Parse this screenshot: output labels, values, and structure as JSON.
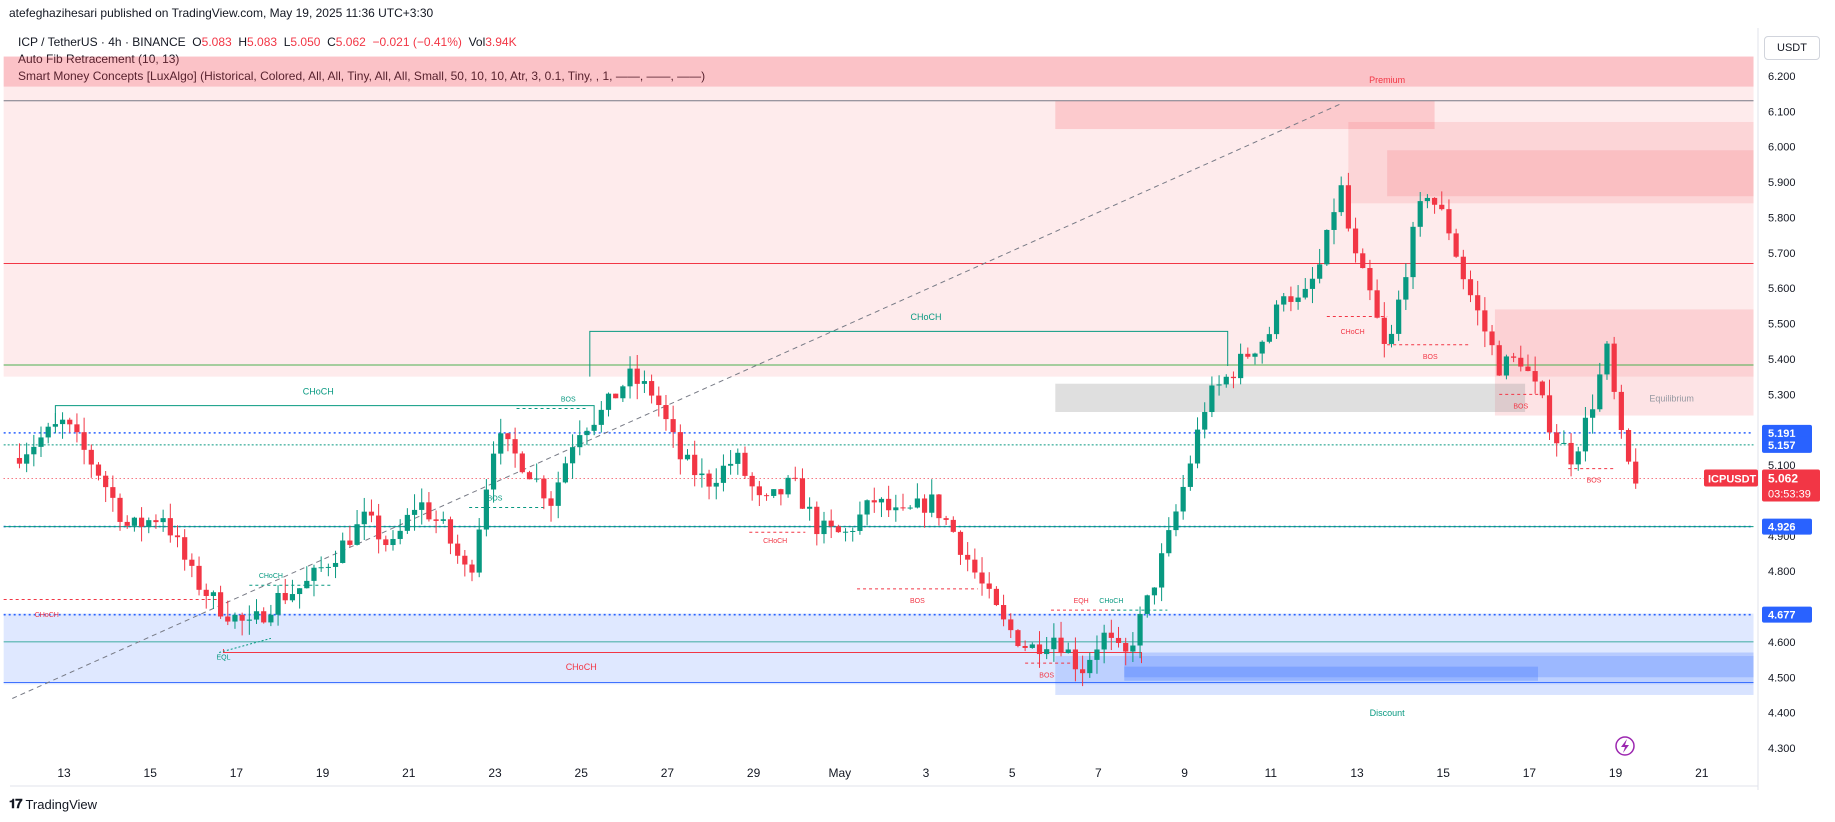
{
  "header": {
    "published": "atefeghazihesari published on TradingView.com, May 19, 2025 11:36 UTC+3:30",
    "symbol_line": {
      "symbol": "ICP / TetherUS · 4h · BINANCE",
      "o_label": "O",
      "o": "5.083",
      "h_label": "H",
      "h": "5.083",
      "l_label": "L",
      "l": "5.050",
      "c_label": "C",
      "c": "5.062",
      "change": "−0.021 (−0.41%)",
      "vol_label": "Vol",
      "vol": "3.94K"
    },
    "indicators": [
      "Auto Fib Retracement (10, 13)",
      "Smart Money Concepts [LuxAlgo] (Historical, Colored, All, All, Tiny, All, All, Small, 50, 10, 10, Atr, 3, 0.1, Tiny, , 1, ——, ——, ——)"
    ]
  },
  "currency_button": "USDT",
  "brand": "TradingView",
  "colors": {
    "up": "#089981",
    "down": "#f23645",
    "blue": "#2962ff"
  },
  "chart_data": {
    "type": "candlestick",
    "ylim": [
      4.25,
      6.35
    ],
    "y_ticks": [
      "6.200",
      "6.100",
      "6.000",
      "5.900",
      "5.800",
      "5.700",
      "5.600",
      "5.500",
      "5.400",
      "5.300",
      "5.100",
      "4.900",
      "4.800",
      "4.600",
      "4.500",
      "4.400",
      "4.300"
    ],
    "y_tick_values": [
      6.2,
      6.1,
      6.0,
      5.9,
      5.8,
      5.7,
      5.6,
      5.5,
      5.4,
      5.3,
      5.1,
      4.9,
      4.8,
      4.6,
      4.5,
      4.4,
      4.3
    ],
    "x_ticks": [
      {
        "label": "13",
        "day": 0
      },
      {
        "label": "15",
        "day": 2
      },
      {
        "label": "17",
        "day": 4
      },
      {
        "label": "19",
        "day": 6
      },
      {
        "label": "21",
        "day": 8
      },
      {
        "label": "23",
        "day": 10
      },
      {
        "label": "25",
        "day": 12
      },
      {
        "label": "27",
        "day": 14
      },
      {
        "label": "29",
        "day": 16
      },
      {
        "label": "May",
        "day": 18
      },
      {
        "label": "3",
        "day": 20
      },
      {
        "label": "5",
        "day": 22
      },
      {
        "label": "7",
        "day": 24
      },
      {
        "label": "9",
        "day": 26
      },
      {
        "label": "11",
        "day": 28
      },
      {
        "label": "13",
        "day": 30
      },
      {
        "label": "15",
        "day": 32
      },
      {
        "label": "17",
        "day": 34
      },
      {
        "label": "19",
        "day": 36
      },
      {
        "label": "21",
        "day": 38
      }
    ],
    "anchors": [
      [
        -1.2,
        5.12
      ],
      [
        0,
        5.22
      ],
      [
        0.8,
        5.08
      ],
      [
        1.5,
        4.92
      ],
      [
        2.3,
        4.96
      ],
      [
        3,
        4.78
      ],
      [
        3.6,
        4.7
      ],
      [
        4.3,
        4.64
      ],
      [
        4.9,
        4.72
      ],
      [
        5.6,
        4.76
      ],
      [
        6.3,
        4.85
      ],
      [
        7.0,
        4.95
      ],
      [
        7.6,
        4.86
      ],
      [
        8.2,
        5.0
      ],
      [
        8.8,
        4.92
      ],
      [
        9.4,
        4.78
      ],
      [
        10.0,
        5.18
      ],
      [
        10.7,
        5.1
      ],
      [
        11.3,
        5.0
      ],
      [
        11.9,
        5.2
      ],
      [
        12.5,
        5.25
      ],
      [
        13.1,
        5.35
      ],
      [
        13.7,
        5.3
      ],
      [
        14.3,
        5.12
      ],
      [
        14.9,
        5.05
      ],
      [
        15.6,
        5.12
      ],
      [
        16.2,
        4.98
      ],
      [
        16.9,
        5.05
      ],
      [
        17.5,
        4.92
      ],
      [
        18.1,
        4.9
      ],
      [
        18.8,
        5.0
      ],
      [
        19.4,
        4.95
      ],
      [
        20.1,
        5.0
      ],
      [
        20.6,
        4.92
      ],
      [
        21.2,
        4.78
      ],
      [
        21.8,
        4.65
      ],
      [
        22.4,
        4.58
      ],
      [
        23.0,
        4.62
      ],
      [
        23.6,
        4.52
      ],
      [
        24.1,
        4.62
      ],
      [
        24.6,
        4.55
      ],
      [
        25.1,
        4.7
      ],
      [
        25.6,
        4.88
      ],
      [
        26.0,
        5.05
      ],
      [
        26.5,
        5.28
      ],
      [
        27.0,
        5.35
      ],
      [
        27.5,
        5.42
      ],
      [
        28.0,
        5.48
      ],
      [
        28.3,
        5.6
      ],
      [
        28.7,
        5.55
      ],
      [
        29.2,
        5.68
      ],
      [
        29.6,
        5.9
      ],
      [
        29.9,
        5.7
      ],
      [
        30.3,
        5.58
      ],
      [
        30.7,
        5.4
      ],
      [
        31.2,
        5.7
      ],
      [
        31.6,
        5.88
      ],
      [
        32.1,
        5.78
      ],
      [
        32.5,
        5.62
      ],
      [
        32.9,
        5.5
      ],
      [
        33.3,
        5.38
      ],
      [
        33.8,
        5.4
      ],
      [
        34.2,
        5.3
      ],
      [
        34.6,
        5.18
      ],
      [
        35.0,
        5.12
      ],
      [
        35.4,
        5.25
      ],
      [
        35.8,
        5.42
      ],
      [
        36.2,
        5.12
      ],
      [
        36.5,
        5.06
      ]
    ],
    "current_price": {
      "label": "ICPUSDT",
      "value": "5.062",
      "countdown": "03:53:39"
    },
    "price_labels": [
      {
        "value": "5.191",
        "color": "#2962ff"
      },
      {
        "value": "5.157",
        "color": "#2962ff"
      },
      {
        "value": "4.926",
        "color": "#2962ff"
      },
      {
        "value": "4.677",
        "color": "#2962ff"
      }
    ],
    "zones": [
      {
        "name": "premium",
        "from": 5.35,
        "to": 6.17,
        "d0": -1.4,
        "d1": 39.2,
        "color": "rgba(242,54,69,0.10)"
      },
      {
        "name": "discount",
        "from": 4.48,
        "to": 4.68,
        "d0": -1.4,
        "d1": 39.2,
        "color": "rgba(41,98,255,0.15)"
      }
    ],
    "blocks": [
      {
        "d0": -1.4,
        "d1": 39.2,
        "from": 6.17,
        "to": 6.255,
        "color": "rgba(242,54,69,0.30)"
      },
      {
        "d0": 23.0,
        "d1": 31.8,
        "from": 6.05,
        "to": 6.13,
        "color": "rgba(242,54,69,0.18)"
      },
      {
        "d0": 29.8,
        "d1": 39.2,
        "from": 5.84,
        "to": 6.07,
        "color": "rgba(242,54,69,0.12)"
      },
      {
        "d0": 30.7,
        "d1": 39.2,
        "from": 5.86,
        "to": 5.99,
        "color": "rgba(242,54,69,0.14)"
      },
      {
        "d0": 33.2,
        "d1": 39.2,
        "from": 5.24,
        "to": 5.54,
        "color": "rgba(242,54,69,0.14)"
      },
      {
        "d0": 23.0,
        "d1": 33.9,
        "from": 5.25,
        "to": 5.33,
        "color": "rgba(150,150,150,0.30)"
      },
      {
        "d0": 23.0,
        "d1": 39.2,
        "from": 4.45,
        "to": 4.56,
        "color": "rgba(41,98,255,0.18)"
      },
      {
        "d0": 24.6,
        "d1": 39.2,
        "from": 4.5,
        "to": 4.57,
        "color": "rgba(41,98,255,0.22)"
      },
      {
        "d0": 24.6,
        "d1": 34.2,
        "from": 4.49,
        "to": 4.53,
        "color": "rgba(41,98,255,0.25)"
      }
    ],
    "hlines": [
      {
        "value": 6.13,
        "d0": -1.4,
        "d1": 39.2,
        "color": "#787b86",
        "width": 1,
        "dash": ""
      },
      {
        "value": 5.67,
        "d0": -1.4,
        "d1": 39.2,
        "color": "#f23645",
        "width": 1,
        "dash": ""
      },
      {
        "value": 5.383,
        "d0": -1.4,
        "d1": 39.2,
        "color": "#4caf50",
        "width": 1,
        "dash": ""
      },
      {
        "value": 5.191,
        "d0": -1.4,
        "d1": 39.2,
        "color": "#2962ff",
        "width": 1.6,
        "dash": "2,3"
      },
      {
        "value": 5.157,
        "d0": -1.4,
        "d1": 39.2,
        "color": "#089981",
        "width": 1,
        "dash": "2,2"
      },
      {
        "value": 5.062,
        "d0": -1.4,
        "d1": 39.2,
        "color": "#f23645",
        "width": 1,
        "dash": "1,3"
      },
      {
        "value": 4.926,
        "d0": -1.4,
        "d1": 39.2,
        "color": "#2962ff",
        "width": 1.6,
        "dash": "2,3"
      },
      {
        "value": 4.926,
        "d0": -1.4,
        "d1": 39.2,
        "color": "#089981",
        "width": 1,
        "dash": ""
      },
      {
        "value": 4.677,
        "d0": -1.4,
        "d1": 39.2,
        "color": "#2962ff",
        "width": 1.6,
        "dash": "2,3"
      },
      {
        "value": 4.72,
        "d0": -1.4,
        "d1": 3.7,
        "color": "#f23645",
        "width": 1,
        "dash": "3,3"
      },
      {
        "value": 4.6,
        "d0": -1.4,
        "d1": 39.2,
        "color": "#089981",
        "width": 0.8,
        "dash": ""
      },
      {
        "value": 4.485,
        "d0": -1.4,
        "d1": 39.2,
        "color": "#2962ff",
        "width": 0.8,
        "dash": ""
      }
    ],
    "structure_lines": [
      {
        "points": [
          [
            -0.2,
            5.19
          ],
          [
            -0.2,
            5.268
          ],
          [
            12.3,
            5.268
          ],
          [
            12.3,
            5.19
          ]
        ],
        "color": "#089981"
      },
      {
        "points": [
          [
            12.2,
            5.35
          ],
          [
            12.2,
            5.478
          ],
          [
            27.0,
            5.478
          ],
          [
            27.0,
            5.38
          ]
        ],
        "color": "#089981"
      },
      {
        "points": [
          [
            3.7,
            4.58
          ],
          [
            3.7,
            4.57
          ],
          [
            25.0,
            4.57
          ],
          [
            25.0,
            4.54
          ]
        ],
        "color": "#f23645"
      },
      {
        "points": [
          [
            9.4,
            4.98
          ],
          [
            11.2,
            4.98
          ]
        ],
        "color": "#089981",
        "dash": "3,3"
      },
      {
        "points": [
          [
            10.5,
            5.26
          ],
          [
            12.1,
            5.26
          ]
        ],
        "color": "#089981",
        "dash": "3,3"
      },
      {
        "points": [
          [
            4.3,
            4.76
          ],
          [
            6.2,
            4.76
          ]
        ],
        "color": "#089981",
        "dash": "3,3"
      },
      {
        "points": [
          [
            15.9,
            4.91
          ],
          [
            17.2,
            4.91
          ]
        ],
        "color": "#f23645",
        "dash": "3,3"
      },
      {
        "points": [
          [
            18.4,
            4.75
          ],
          [
            21.2,
            4.75
          ]
        ],
        "color": "#f23645",
        "dash": "3,3"
      },
      {
        "points": [
          [
            22.3,
            4.54
          ],
          [
            23.4,
            4.54
          ]
        ],
        "color": "#f23645",
        "dash": "3,3"
      },
      {
        "points": [
          [
            22.9,
            4.69
          ],
          [
            24.5,
            4.69
          ]
        ],
        "color": "#f23645",
        "dash": "3,3"
      },
      {
        "points": [
          [
            24.3,
            4.69
          ],
          [
            25.6,
            4.69
          ]
        ],
        "color": "#089981",
        "dash": "3,3"
      },
      {
        "points": [
          [
            29.3,
            5.52
          ],
          [
            30.7,
            5.52
          ]
        ],
        "color": "#f23645",
        "dash": "3,3"
      },
      {
        "points": [
          [
            30.7,
            5.44
          ],
          [
            32.6,
            5.44
          ]
        ],
        "color": "#f23645",
        "dash": "3,3"
      },
      {
        "points": [
          [
            33.3,
            5.3
          ],
          [
            34.3,
            5.3
          ]
        ],
        "color": "#f23645",
        "dash": "3,3"
      },
      {
        "points": [
          [
            34.9,
            5.09
          ],
          [
            36.0,
            5.09
          ]
        ],
        "color": "#f23645",
        "dash": "3,3"
      },
      {
        "points": [
          [
            3.6,
            4.57
          ],
          [
            4.8,
            4.61
          ]
        ],
        "color": "#089981",
        "dash": "2,2"
      }
    ],
    "fib_diagonal": {
      "from": [
        -1.2,
        4.44
      ],
      "to": [
        29.6,
        6.12
      ],
      "color": "#787b86"
    },
    "annotations": [
      {
        "text": "Premium",
        "day": 30.7,
        "value": 6.18,
        "color": "#f23645",
        "size": 9
      },
      {
        "text": "Equilibrium",
        "day": 37.3,
        "value": 5.28,
        "color": "#9598a1",
        "size": 9
      },
      {
        "text": "Discount",
        "day": 30.7,
        "value": 4.39,
        "color": "#089981",
        "size": 9
      },
      {
        "text": "CHoCH",
        "day": 5.9,
        "value": 5.3,
        "color": "#089981",
        "size": 9
      },
      {
        "text": "CHoCH",
        "day": 20.0,
        "value": 5.51,
        "color": "#089981",
        "size": 9
      },
      {
        "text": "CHoCH",
        "day": 12.0,
        "value": 4.52,
        "color": "#f23645",
        "size": 9
      },
      {
        "text": "CHoCH",
        "day": -0.4,
        "value": 4.67,
        "color": "#f23645",
        "size": 7
      },
      {
        "text": "CHoCH",
        "day": 4.8,
        "value": 4.78,
        "color": "#089981",
        "size": 7
      },
      {
        "text": "CHoCH",
        "day": 16.5,
        "value": 4.88,
        "color": "#f23645",
        "size": 7
      },
      {
        "text": "CHoCH",
        "day": 24.3,
        "value": 4.71,
        "color": "#089981",
        "size": 7
      },
      {
        "text": "CHoCH",
        "day": 29.9,
        "value": 5.47,
        "color": "#f23645",
        "size": 7
      },
      {
        "text": "BOS",
        "day": 10.0,
        "value": 5.0,
        "color": "#089981",
        "size": 7
      },
      {
        "text": "BOS",
        "day": 11.7,
        "value": 5.28,
        "color": "#089981",
        "size": 7
      },
      {
        "text": "BOS",
        "day": 19.8,
        "value": 4.71,
        "color": "#f23645",
        "size": 7
      },
      {
        "text": "BOS",
        "day": 22.8,
        "value": 4.5,
        "color": "#f23645",
        "size": 7
      },
      {
        "text": "BOS",
        "day": 31.7,
        "value": 5.4,
        "color": "#f23645",
        "size": 7
      },
      {
        "text": "BOS",
        "day": 33.8,
        "value": 5.26,
        "color": "#f23645",
        "size": 7
      },
      {
        "text": "BOS",
        "day": 35.5,
        "value": 5.05,
        "color": "#f23645",
        "size": 7
      },
      {
        "text": "EQH",
        "day": 23.6,
        "value": 4.71,
        "color": "#f23645",
        "size": 7
      },
      {
        "text": "EQL",
        "day": 3.7,
        "value": 4.55,
        "color": "#089981",
        "size": 7
      }
    ]
  }
}
